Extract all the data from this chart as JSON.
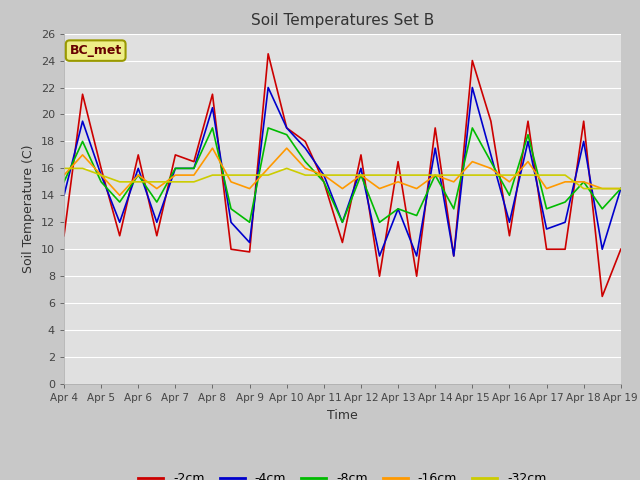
{
  "title": "Soil Temperatures Set B",
  "xlabel": "Time",
  "ylabel": "Soil Temperature (C)",
  "annotation": "BC_met",
  "ylim": [
    0,
    26
  ],
  "xlim": [
    0,
    15
  ],
  "xtick_labels": [
    "Apr 4",
    "Apr 5",
    "Apr 6",
    "Apr 7",
    "Apr 8",
    "Apr 9",
    "Apr 10",
    "Apr 11",
    "Apr 12",
    "Apr 13",
    "Apr 14",
    "Apr 15",
    "Apr 16",
    "Apr 17",
    "Apr 18",
    "Apr 19"
  ],
  "fig_facecolor": "#c8c8c8",
  "ax_facecolor": "#e0e0e0",
  "grid_color": "#ffffff",
  "series": {
    "-2cm": {
      "color": "#cc0000",
      "data": [
        11,
        21.5,
        16,
        11,
        17,
        11,
        17,
        16.5,
        21.5,
        10,
        9.8,
        24.5,
        19,
        18,
        15,
        10.5,
        17,
        8,
        16.5,
        8,
        19,
        9.5,
        24,
        19.5,
        11,
        19.5,
        10,
        10,
        19.5,
        6.5,
        10
      ]
    },
    "-4cm": {
      "color": "#0000cc",
      "data": [
        14,
        19.5,
        15.5,
        12,
        16,
        12,
        16,
        16,
        20.5,
        12,
        10.5,
        22,
        19,
        17.5,
        15.5,
        12,
        16,
        9.5,
        13,
        9.5,
        17.5,
        9.5,
        22,
        17,
        12,
        18,
        11.5,
        12,
        18,
        10,
        14.5
      ]
    },
    "-8cm": {
      "color": "#00bb00",
      "data": [
        15,
        18,
        15,
        13.5,
        15.5,
        13.5,
        16,
        16,
        19,
        13,
        12,
        19,
        18.5,
        16.5,
        15,
        12,
        15.5,
        12,
        13,
        12.5,
        15.5,
        13,
        19,
        16.5,
        14,
        18.5,
        13,
        13.5,
        15,
        13,
        14.5
      ]
    },
    "-16cm": {
      "color": "#ff9900",
      "data": [
        15.5,
        17,
        15.5,
        14,
        15.5,
        14.5,
        15.5,
        15.5,
        17.5,
        15,
        14.5,
        16,
        17.5,
        16,
        15.5,
        14.5,
        15.5,
        14.5,
        15,
        14.5,
        15.5,
        15,
        16.5,
        16,
        15,
        16.5,
        14.5,
        15,
        15,
        14.5,
        14.5
      ]
    },
    "-32cm": {
      "color": "#cccc00",
      "data": [
        16,
        16,
        15.5,
        15,
        15,
        15,
        15,
        15,
        15.5,
        15.5,
        15.5,
        15.5,
        16,
        15.5,
        15.5,
        15.5,
        15.5,
        15.5,
        15.5,
        15.5,
        15.5,
        15.5,
        15.5,
        15.5,
        15.5,
        15.5,
        15.5,
        15.5,
        14.5,
        14.5,
        14.5
      ]
    }
  }
}
